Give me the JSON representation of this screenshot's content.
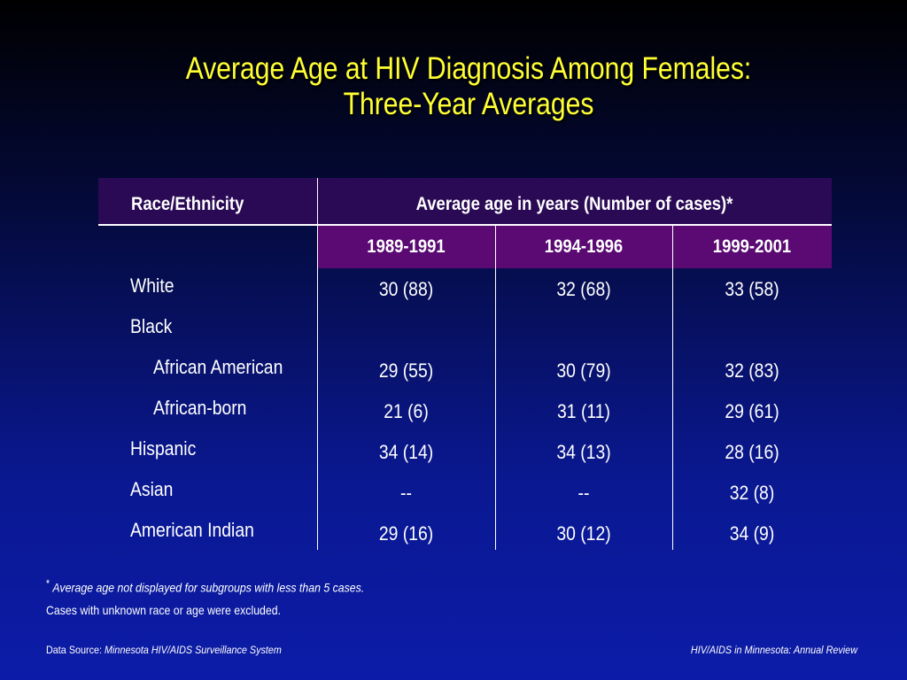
{
  "title": {
    "line1": "Average Age at HIV Diagnosis Among Females:",
    "line2": "Three-Year Averages"
  },
  "table": {
    "col_header_left": "Race/Ethnicity",
    "col_header_group": "Average age in years (Number of cases)*",
    "periods": [
      "1989-1991",
      "1994-1996",
      "1999-2001"
    ],
    "rows": [
      {
        "label": "White",
        "indent": false,
        "values": [
          "30 (88)",
          "32 (68)",
          "33 (58)"
        ]
      },
      {
        "label": "Black",
        "indent": false,
        "values": [
          "",
          "",
          ""
        ]
      },
      {
        "label": "African American",
        "indent": true,
        "values": [
          "29 (55)",
          "30 (79)",
          "32 (83)"
        ]
      },
      {
        "label": "African-born",
        "indent": true,
        "values": [
          "21 (6)",
          "31 (11)",
          "29 (61)"
        ]
      },
      {
        "label": "Hispanic",
        "indent": false,
        "values": [
          "34 (14)",
          "34 (13)",
          "28 (16)"
        ]
      },
      {
        "label": "Asian",
        "indent": false,
        "values": [
          "--",
          "--",
          "32 (8)"
        ]
      },
      {
        "label": "American Indian",
        "indent": false,
        "values": [
          "29 (16)",
          "30 (12)",
          "34 (9)"
        ]
      }
    ]
  },
  "footnotes": {
    "asterisk": "*",
    "note1": "Average age not displayed for subgroups with less than 5 cases.",
    "note2": "Cases with unknown race or age were excluded."
  },
  "source": {
    "label": "Data Source: ",
    "name": "Minnesota HIV/AIDS Surveillance System",
    "report": "HIV/AIDS in Minnesota: Annual Review"
  }
}
